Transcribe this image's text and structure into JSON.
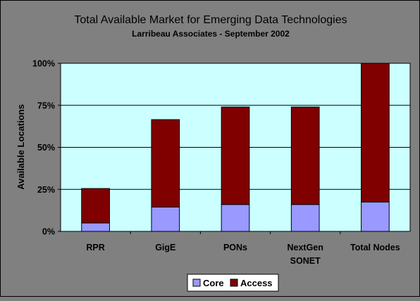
{
  "chart_data": {
    "type": "bar",
    "stacked": true,
    "title": "Total Available Market for Emerging Data Technologies",
    "subtitle": "Larribeau Associates - September 2002",
    "ylabel": "Available Locations",
    "xlabel": "",
    "ylim": [
      0,
      100
    ],
    "y_tick_values": [
      0,
      25,
      50,
      75,
      100
    ],
    "y_tick_labels": [
      "0%",
      "25%",
      "50%",
      "75%",
      "100%"
    ],
    "grid": true,
    "legend_position": "bottom",
    "categories": [
      [
        "RPR"
      ],
      [
        "GigE"
      ],
      [
        "PONs"
      ],
      [
        "NextGen",
        "SONET"
      ],
      [
        "Total Nodes"
      ]
    ],
    "series": [
      {
        "name": "Core",
        "color": "#9999FF",
        "values": [
          5,
          14.5,
          16,
          16,
          17.5
        ]
      },
      {
        "name": "Access",
        "color": "#800000",
        "values": [
          20.5,
          52,
          58,
          58,
          82.5
        ]
      }
    ],
    "plot_background": "#CCFFFF",
    "chart_background": "#808080"
  }
}
